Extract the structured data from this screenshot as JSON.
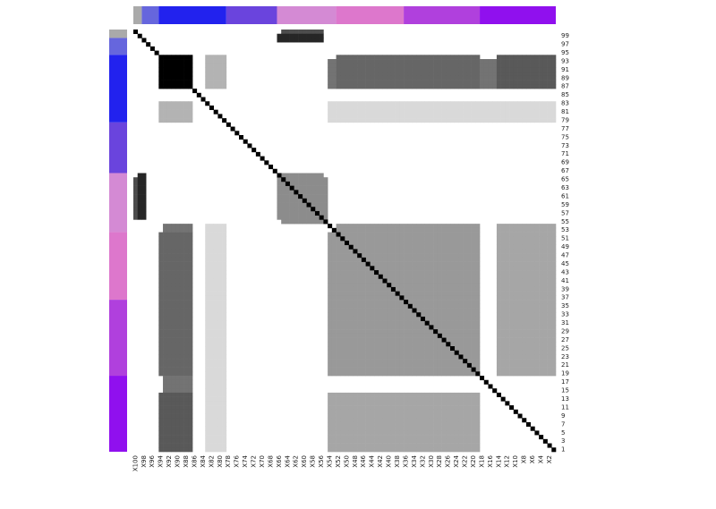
{
  "chart_data": {
    "type": "heatmap",
    "title": "",
    "xlabel": "",
    "ylabel": "",
    "n": 100,
    "x_tick_labels": [
      "X100",
      "X98",
      "X96",
      "X94",
      "X92",
      "X90",
      "X88",
      "X86",
      "X84",
      "X82",
      "X80",
      "X78",
      "X76",
      "X74",
      "X72",
      "X70",
      "X68",
      "X66",
      "X64",
      "X62",
      "X60",
      "X58",
      "X56",
      "X54",
      "X52",
      "X50",
      "X48",
      "X46",
      "X44",
      "X42",
      "X40",
      "X38",
      "X36",
      "X34",
      "X32",
      "X30",
      "X28",
      "X26",
      "X24",
      "X22",
      "X20",
      "X18",
      "X16",
      "X14",
      "X12",
      "X10",
      "X8",
      "X6",
      "X4",
      "X2"
    ],
    "y_tick_labels": [
      "99",
      "97",
      "95",
      "93",
      "91",
      "89",
      "87",
      "85",
      "83",
      "81",
      "79",
      "77",
      "75",
      "73",
      "71",
      "69",
      "67",
      "65",
      "63",
      "61",
      "59",
      "57",
      "55",
      "53",
      "51",
      "49",
      "47",
      "45",
      "43",
      "41",
      "39",
      "37",
      "35",
      "33",
      "31",
      "29",
      "27",
      "25",
      "23",
      "21",
      "19",
      "17",
      "15",
      "13",
      "11",
      "9",
      "7",
      "5",
      "3",
      "1"
    ],
    "groups": [
      {
        "start": 100,
        "end": 99,
        "color": "#aaaaaa"
      },
      {
        "start": 98,
        "end": 95,
        "color": "#6666dd"
      },
      {
        "start": 94,
        "end": 79,
        "color": "#2222ee"
      },
      {
        "start": 78,
        "end": 67,
        "color": "#6a44dd"
      },
      {
        "start": 66,
        "end": 53,
        "color": "#d48ad4"
      },
      {
        "start": 52,
        "end": 37,
        "color": "#dd77cc"
      },
      {
        "start": 36,
        "end": 19,
        "color": "#b040dd"
      },
      {
        "start": 18,
        "end": 1,
        "color": "#9010ee"
      }
    ],
    "color_scale": {
      "low": "#ffffff",
      "high": "#000000",
      "min": 0,
      "max": 1
    },
    "diagonal_value": 1.0,
    "high_blocks": [
      {
        "rows": [
          93,
          87
        ],
        "cols": [
          94,
          87
        ],
        "value": 1.0
      },
      {
        "rows": [
          99,
          98
        ],
        "cols": [
          66,
          56
        ],
        "value": 0.85
      },
      {
        "rows": [
          93,
          87
        ],
        "cols": [
          54,
          1
        ],
        "value": 0.55
      },
      {
        "rows": [
          52,
          19
        ],
        "cols": [
          94,
          87
        ],
        "value": 0.6
      },
      {
        "rows": [
          52,
          19
        ],
        "cols": [
          54,
          19
        ],
        "value": 0.4
      },
      {
        "rows": [
          14,
          1
        ],
        "cols": [
          94,
          87
        ],
        "value": 0.65
      },
      {
        "rows": [
          14,
          1
        ],
        "cols": [
          54,
          19
        ],
        "value": 0.35
      },
      {
        "rows": [
          65,
          56
        ],
        "cols": [
          100,
          99
        ],
        "value": 0.7
      },
      {
        "rows": [
          65,
          56
        ],
        "cols": [
          66,
          55
        ],
        "value": 0.45
      },
      {
        "rows": [
          83,
          79
        ],
        "cols": [
          94,
          87
        ],
        "value": 0.3
      },
      {
        "rows": [
          83,
          79
        ],
        "cols": [
          54,
          1
        ],
        "value": 0.15
      }
    ]
  }
}
